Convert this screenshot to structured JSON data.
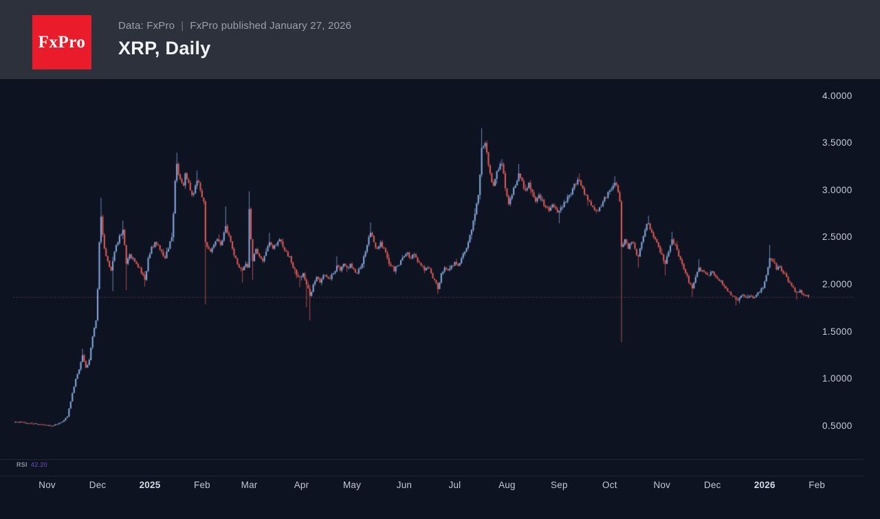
{
  "header": {
    "logo_text": "FxPro",
    "logo_color": "#ea1c2b",
    "source_label": "Data: FxPro",
    "separator": "|",
    "published_label": "FxPro published January 27, 2026",
    "title": "XRP, Daily"
  },
  "rsi_panel": {
    "label": "RSI",
    "value": "42.20"
  },
  "colors": {
    "background": "#0d1321",
    "header_background": "#2c313c",
    "candle_up": "#85a7db",
    "candle_down": "#dd5a54",
    "axis_text": "#c6cbd7",
    "price_line": "#c97b7b",
    "separator_line": "#242b3c",
    "rsi_value": "#7150c5"
  },
  "chart_data": {
    "type": "candlestick",
    "symbol": "XRP",
    "timeframe": "Daily",
    "title": "XRP, Daily",
    "start_date": "2024-10-13",
    "end_date": "2026-01-27",
    "last_close": 1.87,
    "last_price_line": 1.87,
    "rsi": 42.2,
    "grid": false,
    "y_axis": {
      "side": "right",
      "tick_labels": [
        "4.0000",
        "3.5000",
        "3.0000",
        "2.5000",
        "2.0000",
        "1.5000",
        "1.0000",
        "0.5000"
      ],
      "tick_values": [
        4.0,
        3.5,
        3.0,
        2.5,
        2.0,
        1.5,
        1.0,
        0.5
      ],
      "visible_range": [
        0.148,
        4.18
      ]
    },
    "x_axis": {
      "tick_labels": [
        {
          "label": "Nov",
          "day": 19,
          "bold": false
        },
        {
          "label": "Dec",
          "day": 49,
          "bold": false
        },
        {
          "label": "2025",
          "day": 80,
          "bold": true
        },
        {
          "label": "Feb",
          "day": 111,
          "bold": false
        },
        {
          "label": "Mar",
          "day": 139,
          "bold": false
        },
        {
          "label": "Apr",
          "day": 170,
          "bold": false
        },
        {
          "label": "May",
          "day": 200,
          "bold": false
        },
        {
          "label": "Jun",
          "day": 231,
          "bold": false
        },
        {
          "label": "Jul",
          "day": 261,
          "bold": false
        },
        {
          "label": "Aug",
          "day": 292,
          "bold": false
        },
        {
          "label": "Sep",
          "day": 323,
          "bold": false
        },
        {
          "label": "Oct",
          "day": 353,
          "bold": false
        },
        {
          "label": "Nov",
          "day": 384,
          "bold": false
        },
        {
          "label": "Dec",
          "day": 414,
          "bold": false
        },
        {
          "label": "2026",
          "day": 445,
          "bold": true
        },
        {
          "label": "Feb",
          "day": 476,
          "bold": false
        }
      ]
    },
    "price_path_format": "[day_index, close, high_override|null, low_override|null]",
    "price_path": [
      [
        0,
        0.545
      ],
      [
        8,
        0.53
      ],
      [
        16,
        0.515
      ],
      [
        22,
        0.5
      ],
      [
        28,
        0.545
      ],
      [
        31,
        0.6
      ],
      [
        34,
        0.85
      ],
      [
        36,
        1.0
      ],
      [
        38,
        1.1
      ],
      [
        40,
        1.25,
        1.32,
        null
      ],
      [
        42,
        1.12
      ],
      [
        44,
        1.2
      ],
      [
        46,
        1.45
      ],
      [
        48,
        1.62
      ],
      [
        49,
        1.95
      ],
      [
        50,
        2.45
      ],
      [
        51,
        2.72,
        2.92,
        null
      ],
      [
        53,
        2.38
      ],
      [
        55,
        2.25
      ],
      [
        57,
        2.15
      ],
      [
        58,
        2.25,
        null,
        1.93
      ],
      [
        60,
        2.42
      ],
      [
        62,
        2.52
      ],
      [
        64,
        2.58,
        2.68,
        null
      ],
      [
        65,
        2.42
      ],
      [
        66,
        2.22,
        null,
        1.94
      ],
      [
        68,
        2.32
      ],
      [
        70,
        2.28
      ],
      [
        72,
        2.22
      ],
      [
        74,
        2.18
      ],
      [
        76,
        2.1
      ],
      [
        77,
        2.05,
        null,
        1.98
      ],
      [
        79,
        2.28
      ],
      [
        81,
        2.4
      ],
      [
        83,
        2.45
      ],
      [
        85,
        2.42
      ],
      [
        87,
        2.35
      ],
      [
        89,
        2.28
      ],
      [
        91,
        2.38
      ],
      [
        93,
        2.5
      ],
      [
        94,
        2.75
      ],
      [
        95,
        3.1
      ],
      [
        96,
        3.28,
        3.4,
        null
      ],
      [
        98,
        3.12
      ],
      [
        100,
        3.05
      ],
      [
        101,
        3.18
      ],
      [
        103,
        3.08
      ],
      [
        105,
        2.95
      ],
      [
        107,
        3.05
      ],
      [
        108,
        3.1,
        3.21,
        null
      ],
      [
        110,
        3.0
      ],
      [
        112,
        2.88
      ],
      [
        113,
        2.45,
        null,
        1.79
      ],
      [
        114,
        2.4
      ],
      [
        116,
        2.35
      ],
      [
        118,
        2.42
      ],
      [
        120,
        2.48
      ],
      [
        122,
        2.42
      ],
      [
        125,
        2.62,
        2.83,
        null
      ],
      [
        127,
        2.52
      ],
      [
        129,
        2.38
      ],
      [
        131,
        2.28
      ],
      [
        133,
        2.18
      ],
      [
        135,
        2.15,
        null,
        2.02
      ],
      [
        137,
        2.22
      ],
      [
        138,
        2.18
      ],
      [
        139,
        2.8,
        2.99,
        null
      ],
      [
        140,
        2.48
      ],
      [
        141,
        2.25,
        null,
        2.05
      ],
      [
        143,
        2.38
      ],
      [
        145,
        2.3
      ],
      [
        147,
        2.25
      ],
      [
        149,
        2.35
      ],
      [
        151,
        2.45,
        2.55,
        null
      ],
      [
        153,
        2.38
      ],
      [
        155,
        2.42
      ],
      [
        157,
        2.48
      ],
      [
        159,
        2.4
      ],
      [
        161,
        2.35
      ],
      [
        163,
        2.3
      ],
      [
        165,
        2.18
      ],
      [
        167,
        2.1
      ],
      [
        169,
        2.08,
        null,
        1.97
      ],
      [
        171,
        2.12
      ],
      [
        173,
        2.0,
        null,
        1.76
      ],
      [
        175,
        1.88,
        null,
        1.62
      ],
      [
        177,
        2.0
      ],
      [
        179,
        2.08
      ],
      [
        181,
        2.02
      ],
      [
        183,
        2.1
      ],
      [
        185,
        2.08
      ],
      [
        187,
        2.06
      ],
      [
        189,
        2.12
      ],
      [
        191,
        2.2,
        2.3,
        null
      ],
      [
        193,
        2.15
      ],
      [
        195,
        2.22
      ],
      [
        197,
        2.18
      ],
      [
        199,
        2.22
      ],
      [
        201,
        2.16
      ],
      [
        203,
        2.12
      ],
      [
        205,
        2.18
      ],
      [
        207,
        2.3
      ],
      [
        209,
        2.42
      ],
      [
        211,
        2.55,
        2.66,
        null
      ],
      [
        213,
        2.45
      ],
      [
        215,
        2.38
      ],
      [
        217,
        2.45
      ],
      [
        219,
        2.38
      ],
      [
        221,
        2.28
      ],
      [
        223,
        2.2
      ],
      [
        225,
        2.14
      ],
      [
        227,
        2.2
      ],
      [
        229,
        2.26
      ],
      [
        231,
        2.3
      ],
      [
        233,
        2.34
      ],
      [
        235,
        2.28
      ],
      [
        237,
        2.32
      ],
      [
        239,
        2.24
      ],
      [
        241,
        2.2
      ],
      [
        243,
        2.15
      ],
      [
        245,
        2.18
      ],
      [
        247,
        2.12
      ],
      [
        249,
        2.05
      ],
      [
        251,
        1.95,
        null,
        1.9
      ],
      [
        253,
        2.12
      ],
      [
        255,
        2.18
      ],
      [
        257,
        2.15
      ],
      [
        259,
        2.2
      ],
      [
        261,
        2.24
      ],
      [
        263,
        2.2
      ],
      [
        265,
        2.28
      ],
      [
        267,
        2.35
      ],
      [
        269,
        2.45
      ],
      [
        271,
        2.58
      ],
      [
        273,
        2.75
      ],
      [
        275,
        2.95
      ],
      [
        277,
        3.45,
        3.66,
        null
      ],
      [
        279,
        3.5
      ],
      [
        280,
        3.4
      ],
      [
        282,
        3.18
      ],
      [
        284,
        3.05
      ],
      [
        285,
        3.12
      ],
      [
        287,
        3.22
      ],
      [
        289,
        3.28,
        3.33,
        null
      ],
      [
        291,
        3.02
      ],
      [
        293,
        2.85
      ],
      [
        295,
        2.95
      ],
      [
        297,
        3.05
      ],
      [
        299,
        3.18,
        3.28,
        null
      ],
      [
        301,
        3.1
      ],
      [
        303,
        3.0
      ],
      [
        305,
        3.08
      ],
      [
        307,
        2.98
      ],
      [
        309,
        2.88
      ],
      [
        311,
        2.95
      ],
      [
        313,
        2.9
      ],
      [
        315,
        2.82
      ],
      [
        317,
        2.78
      ],
      [
        319,
        2.85
      ],
      [
        321,
        2.8
      ],
      [
        323,
        2.78,
        null,
        2.65
      ],
      [
        325,
        2.82
      ],
      [
        327,
        2.88
      ],
      [
        329,
        2.95
      ],
      [
        331,
        3.02
      ],
      [
        333,
        3.06
      ],
      [
        335,
        3.1,
        3.18,
        null
      ],
      [
        337,
        3.02
      ],
      [
        339,
        2.95
      ],
      [
        341,
        2.88
      ],
      [
        343,
        2.82
      ],
      [
        345,
        2.78
      ],
      [
        347,
        2.82
      ],
      [
        349,
        2.88
      ],
      [
        351,
        2.92
      ],
      [
        353,
        3.0
      ],
      [
        355,
        3.05
      ],
      [
        356,
        3.08,
        3.15,
        null
      ],
      [
        358,
        2.98
      ],
      [
        359,
        2.88
      ],
      [
        360,
        2.4,
        null,
        1.39
      ],
      [
        362,
        2.48
      ],
      [
        364,
        2.38
      ],
      [
        366,
        2.45
      ],
      [
        368,
        2.38
      ],
      [
        370,
        2.3,
        null,
        2.18
      ],
      [
        372,
        2.45
      ],
      [
        374,
        2.58
      ],
      [
        376,
        2.65,
        2.73,
        null
      ],
      [
        378,
        2.55
      ],
      [
        380,
        2.48
      ],
      [
        382,
        2.4
      ],
      [
        384,
        2.32
      ],
      [
        386,
        2.22,
        null,
        2.1
      ],
      [
        388,
        2.35
      ],
      [
        390,
        2.48,
        2.56,
        null
      ],
      [
        392,
        2.42
      ],
      [
        394,
        2.3
      ],
      [
        396,
        2.22
      ],
      [
        398,
        2.12
      ],
      [
        400,
        2.02
      ],
      [
        402,
        1.96,
        null,
        1.87
      ],
      [
        404,
        2.08
      ],
      [
        406,
        2.18,
        2.27,
        null
      ],
      [
        408,
        2.15
      ],
      [
        410,
        2.12
      ],
      [
        412,
        2.1
      ],
      [
        414,
        2.14
      ],
      [
        416,
        2.08
      ],
      [
        418,
        2.04
      ],
      [
        420,
        2.0
      ],
      [
        422,
        1.96
      ],
      [
        424,
        1.92
      ],
      [
        426,
        1.88
      ],
      [
        428,
        1.84,
        null,
        1.78
      ],
      [
        430,
        1.86
      ],
      [
        432,
        1.89
      ],
      [
        434,
        1.86
      ],
      [
        436,
        1.88
      ],
      [
        438,
        1.86
      ],
      [
        440,
        1.89
      ],
      [
        442,
        1.92
      ],
      [
        444,
        1.96
      ],
      [
        446,
        2.1
      ],
      [
        448,
        2.28,
        2.42,
        null
      ],
      [
        450,
        2.24
      ],
      [
        452,
        2.16
      ],
      [
        454,
        2.19
      ],
      [
        456,
        2.12
      ],
      [
        458,
        2.08
      ],
      [
        460,
        2.02
      ],
      [
        462,
        1.97
      ],
      [
        464,
        1.92,
        null,
        1.84
      ],
      [
        466,
        1.94
      ],
      [
        468,
        1.89
      ],
      [
        471,
        1.87
      ]
    ]
  }
}
